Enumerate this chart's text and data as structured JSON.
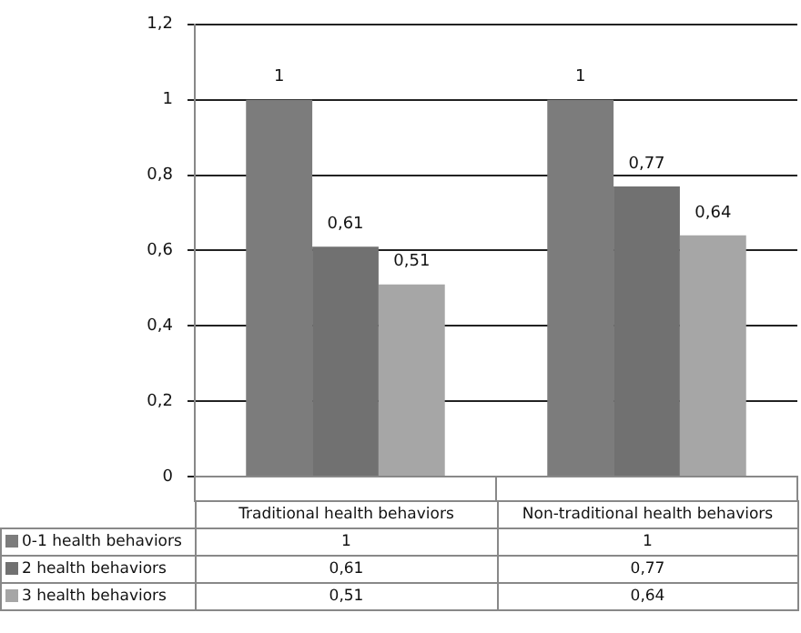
{
  "chart_data": {
    "type": "bar",
    "categories": [
      "Traditional health behaviors",
      "Non-traditional health behaviors"
    ],
    "series": [
      {
        "name": "0-1 health behaviors",
        "color": "#7c7c7c",
        "values": [
          1,
          1
        ],
        "value_labels": [
          "1",
          "1"
        ]
      },
      {
        "name": "2 health behaviors",
        "color": "#717171",
        "values": [
          0.61,
          0.77
        ],
        "value_labels": [
          "0,61",
          "0,77"
        ]
      },
      {
        "name": "3 health behaviors",
        "color": "#a6a6a6",
        "values": [
          0.51,
          0.64
        ],
        "value_labels": [
          "0,51",
          "0,64"
        ]
      }
    ],
    "ylim": [
      0,
      1.2
    ],
    "yticks": [
      {
        "value": 0,
        "label": "0"
      },
      {
        "value": 0.2,
        "label": "0,2"
      },
      {
        "value": 0.4,
        "label": "0,4"
      },
      {
        "value": 0.6,
        "label": "0,6"
      },
      {
        "value": 0.8,
        "label": "0,8"
      },
      {
        "value": 1,
        "label": "1"
      },
      {
        "value": 1.2,
        "label": "1,2"
      }
    ],
    "grid": "y",
    "legend": "bottom"
  }
}
